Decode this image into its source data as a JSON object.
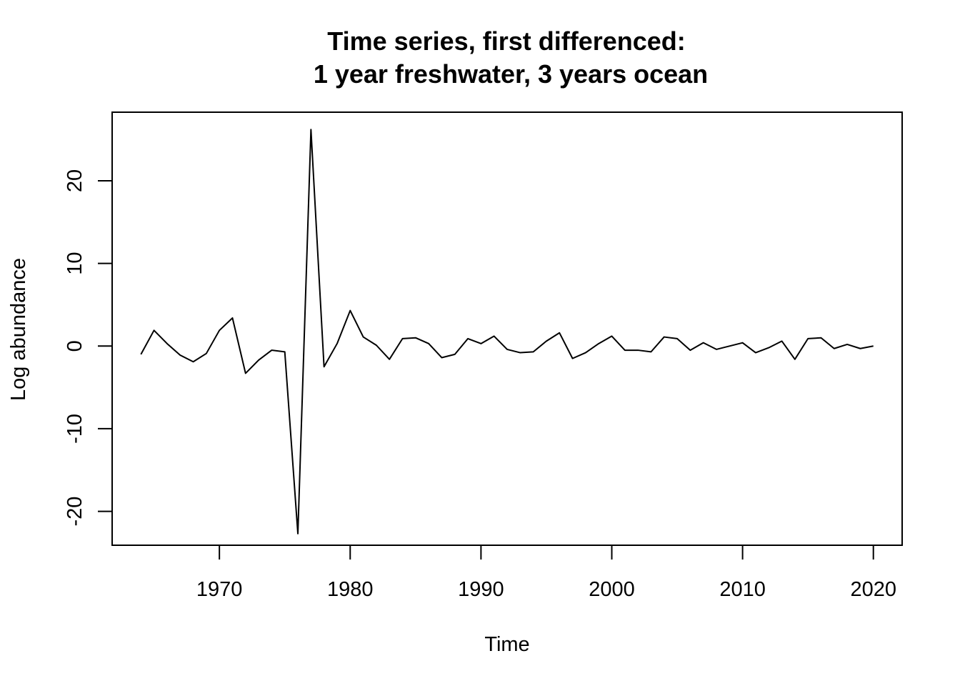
{
  "chart_data": {
    "type": "line",
    "title_line1": "Time series, first differenced:",
    "title_line2": "1 year freshwater, 3 years ocean",
    "xlabel": "Time",
    "ylabel": "Log abundance",
    "xlim": [
      1961.8,
      2022.2
    ],
    "ylim": [
      -24.1,
      28.3
    ],
    "x_ticks": [
      1970,
      1980,
      1990,
      2000,
      2010,
      2020
    ],
    "y_ticks": [
      -20,
      -10,
      0,
      10,
      20
    ],
    "x_tick_labels": [
      "1970",
      "1980",
      "1990",
      "2000",
      "2010",
      "2020"
    ],
    "y_tick_labels": [
      "-20",
      "-10",
      "0",
      "10",
      "20"
    ],
    "line_color": "#000000",
    "series": [
      {
        "x": [
          1964,
          1965,
          1966,
          1967,
          1968,
          1969,
          1970,
          1971,
          1972,
          1973,
          1974,
          1975,
          1976,
          1977,
          1978,
          1979,
          1980,
          1981,
          1982,
          1983,
          1984,
          1985,
          1986,
          1987,
          1988,
          1989,
          1990,
          1991,
          1992,
          1993,
          1994,
          1995,
          1996,
          1997,
          1998,
          1999,
          2000,
          2001,
          2002,
          2003,
          2004,
          2005,
          2006,
          2007,
          2008,
          2009,
          2010,
          2011,
          2012,
          2013,
          2014,
          2015,
          2016,
          2017,
          2018,
          2019,
          2020
        ],
        "values": [
          -1.0,
          1.9,
          0.3,
          -1.1,
          -1.9,
          -0.9,
          1.9,
          3.4,
          -3.3,
          -1.7,
          -0.5,
          -0.7,
          -22.7,
          26.2,
          -2.5,
          0.3,
          4.3,
          1.1,
          0.1,
          -1.6,
          0.9,
          1.0,
          0.3,
          -1.4,
          -1.0,
          0.9,
          0.3,
          1.2,
          -0.4,
          -0.8,
          -0.7,
          0.6,
          1.6,
          -1.5,
          -0.8,
          0.3,
          1.2,
          -0.5,
          -0.5,
          -0.7,
          1.1,
          0.9,
          -0.5,
          0.4,
          -0.4,
          0.0,
          0.4,
          -0.8,
          -0.2,
          0.6,
          -1.6,
          0.9,
          1.0,
          -0.3,
          0.2,
          -0.3,
          0.0
        ]
      }
    ]
  }
}
